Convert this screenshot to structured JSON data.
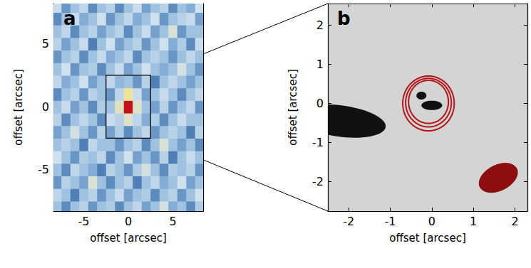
{
  "chart_data": [
    {
      "type": "heatmap",
      "title": "a",
      "x_label": "offset [arcsec]",
      "y_label": "offset [arcsec]",
      "xlim": [
        -8.4,
        8.4
      ],
      "ylim": [
        -8.3,
        8.2
      ],
      "xticks": [
        -5,
        0,
        5
      ],
      "yticks": [
        -5,
        0,
        5
      ],
      "grid": false,
      "x": [
        -8,
        -7,
        -6,
        -5,
        -4,
        -3,
        -2,
        -1,
        0,
        1,
        2,
        3,
        4,
        5,
        6,
        7,
        8
      ],
      "y": [
        -8,
        -7,
        -6,
        -5,
        -4,
        -3,
        -2,
        -1,
        0,
        1,
        2,
        3,
        4,
        5,
        6,
        7,
        8
      ],
      "cells": [
        [
          0,
          -0.6,
          0,
          0.3,
          -0.5,
          0,
          0.2,
          -0.6,
          0,
          0.4,
          -0.4,
          0,
          0.7,
          -0.3,
          0,
          -0.6,
          0.2
        ],
        [
          0.4,
          0,
          -0.7,
          0,
          0.3,
          -0.5,
          0,
          0.5,
          -0.4,
          0,
          0.2,
          -0.6,
          0,
          0.3,
          -0.5,
          0,
          0.6
        ],
        [
          -0.5,
          0.3,
          0,
          -0.4,
          0.8,
          0,
          -0.6,
          0,
          0.3,
          -0.7,
          0,
          0.4,
          -0.3,
          0,
          0.6,
          -0.4,
          0
        ],
        [
          0,
          -0.6,
          0.4,
          0,
          -0.3,
          -0.7,
          0.3,
          0,
          -0.5,
          0.2,
          0.7,
          0,
          -0.6,
          0.2,
          0,
          0.3,
          -0.5
        ],
        [
          0.6,
          0,
          -0.5,
          0.2,
          0,
          0.4,
          -0.6,
          0,
          0.6,
          -0.4,
          0,
          -0.5,
          0.3,
          -0.7,
          0,
          0.5,
          0
        ],
        [
          0,
          0.3,
          0,
          -0.7,
          0.4,
          0,
          0,
          -0.5,
          0,
          0.3,
          -0.6,
          0,
          0.8,
          0,
          -0.4,
          0,
          -0.6
        ],
        [
          -0.4,
          0,
          0.7,
          0,
          -0.5,
          0.3,
          -0.4,
          0.2,
          -0.6,
          0,
          0.4,
          -0.5,
          0,
          0.3,
          0,
          -0.7,
          0.3
        ],
        [
          0.3,
          -0.6,
          0,
          0.4,
          0,
          -0.6,
          0.5,
          0.3,
          0.9,
          0.4,
          -0.3,
          0.2,
          -0.6,
          0,
          0.5,
          0,
          0
        ],
        [
          0,
          0.5,
          -0.4,
          0,
          -0.6,
          0.2,
          0,
          1.0,
          3.0,
          0.9,
          0,
          -0.4,
          0.3,
          -0.5,
          0,
          0.4,
          -0.5
        ],
        [
          -0.6,
          0,
          0.3,
          -0.5,
          0.3,
          0,
          -0.5,
          0.4,
          1.3,
          0.5,
          -0.4,
          0,
          0.5,
          0,
          -0.6,
          0,
          0.4
        ],
        [
          0.4,
          -0.3,
          0,
          0.6,
          -0.4,
          0,
          0.4,
          -0.2,
          0,
          -0.5,
          0.3,
          -0.7,
          0,
          0.4,
          0,
          -0.4,
          0
        ],
        [
          0,
          0.6,
          -0.5,
          0,
          0.2,
          -0.6,
          0,
          0.5,
          -0.4,
          0,
          0.6,
          0,
          -0.3,
          0,
          0.7,
          0,
          -0.5
        ],
        [
          -0.5,
          0,
          0.3,
          -0.6,
          0,
          0.5,
          -0.3,
          0,
          0.4,
          -0.6,
          0,
          0.3,
          0,
          -0.5,
          0,
          0.4,
          0
        ],
        [
          0.3,
          -0.4,
          0,
          0.5,
          -0.7,
          0,
          0.6,
          -0.4,
          0,
          0.3,
          -0.5,
          0,
          0.6,
          -0.3,
          0.2,
          -0.6,
          0.5
        ],
        [
          0,
          0.4,
          -0.6,
          0,
          0.3,
          -0.4,
          0,
          0.3,
          -0.6,
          0,
          0.5,
          -0.4,
          0,
          0.8,
          -0.5,
          0,
          0
        ],
        [
          -0.6,
          0,
          0.5,
          -0.3,
          0,
          0.6,
          -0.5,
          0,
          0.4,
          -0.3,
          0,
          0.6,
          -0.5,
          0,
          0.3,
          0.5,
          -0.4
        ],
        [
          0.5,
          -0.5,
          0,
          0.4,
          -0.6,
          0,
          0.3,
          -0.6,
          0,
          0.5,
          -0.4,
          0,
          0.3,
          -0.6,
          0,
          -0.3,
          0.6
        ]
      ],
      "value_range": [
        -1,
        3
      ],
      "inset": {
        "xlim": [
          -2.5,
          2.5
        ],
        "ylim": [
          -2.5,
          2.5
        ]
      }
    },
    {
      "type": "image",
      "title": "b",
      "x_label": "offset [arcsec]",
      "y_label": "offset [arcsec]",
      "xlim": [
        -2.5,
        2.3
      ],
      "ylim": [
        -2.75,
        2.55
      ],
      "xticks": [
        -2,
        -1,
        0,
        1,
        2
      ],
      "yticks": [
        -2,
        -1,
        0,
        1,
        2
      ],
      "grid": false,
      "color": "#b3161b",
      "sources": [
        {
          "x": -2.2,
          "y": -0.45,
          "rx": 1.1,
          "ry": 0.4,
          "angle": -8
        },
        {
          "x": 0.0,
          "y": -0.05,
          "rx": 0.25,
          "ry": 0.12,
          "angle": 0
        },
        {
          "x": -0.25,
          "y": 0.2,
          "rx": 0.12,
          "ry": 0.1,
          "angle": 0
        }
      ],
      "contours": [
        {
          "x": -0.08,
          "y": 0.0,
          "rx": 0.62,
          "ry": 0.7,
          "angle": 0
        },
        {
          "x": -0.08,
          "y": 0.02,
          "rx": 0.55,
          "ry": 0.62,
          "angle": 0
        },
        {
          "x": -0.08,
          "y": 0.04,
          "rx": 0.48,
          "ry": 0.55,
          "angle": 0
        }
      ],
      "beam": {
        "x": 1.6,
        "y": -1.9,
        "major": 0.5,
        "minor": 0.32,
        "angle": 30
      }
    }
  ]
}
